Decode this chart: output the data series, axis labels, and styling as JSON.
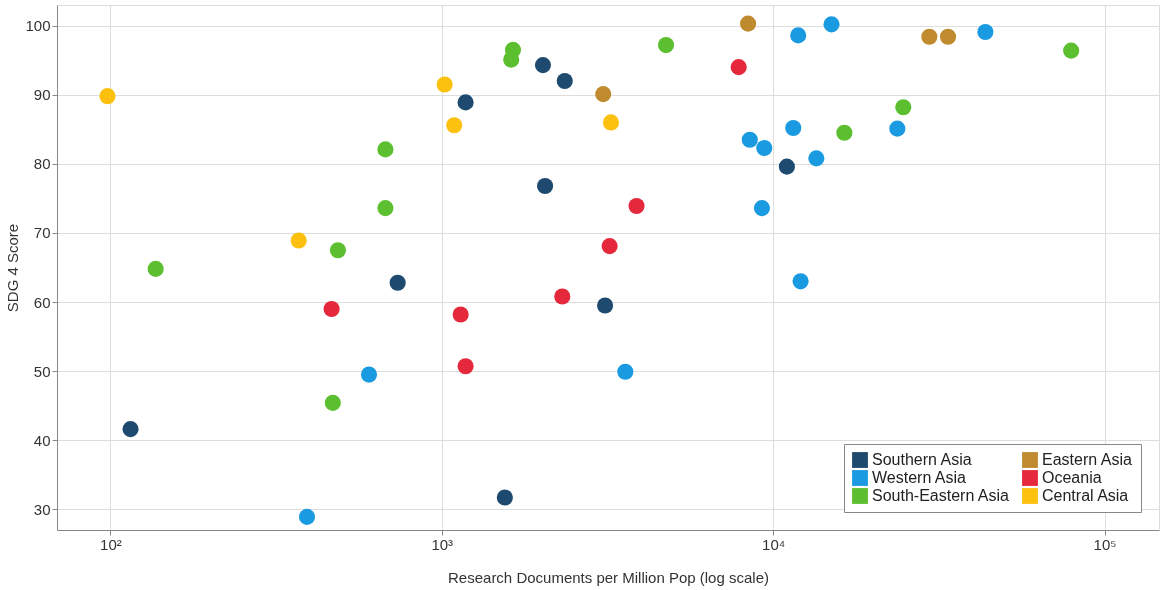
{
  "chart_data": {
    "type": "scatter",
    "xlabel": "Research Documents per Million Pop (log scale)",
    "ylabel": "SDG 4 Score",
    "log": "x",
    "grid": true,
    "legend": "bottom right",
    "xlim": [
      69,
      146000
    ],
    "ylim": [
      27,
      103
    ],
    "xticks": [
      {
        "value": 100,
        "label": "10²"
      },
      {
        "value": 1000,
        "label": "10³"
      },
      {
        "value": 10000,
        "label": "10⁴"
      },
      {
        "value": 100000,
        "label": "10⁵"
      }
    ],
    "yticks": [
      30,
      40,
      50,
      60,
      70,
      80,
      90,
      100
    ],
    "series": [
      {
        "name": "Southern Asia",
        "color": "#1d4a6e",
        "x": [
          115,
          736,
          1180,
          2020,
          2350,
          2050,
          3110,
          1550,
          11000
        ],
        "values": [
          41.6,
          62.8,
          88.9,
          94.3,
          92.0,
          76.8,
          59.5,
          31.7,
          79.6
        ]
      },
      {
        "name": "Western Asia",
        "color": "#1a9ae0",
        "x": [
          11900,
          15000,
          43700,
          8500,
          11500,
          9400,
          13500,
          23700,
          9250,
          12100,
          3580,
          603,
          392
        ],
        "values": [
          98.6,
          100.2,
          99.1,
          83.5,
          85.2,
          82.3,
          80.8,
          85.1,
          73.6,
          63.0,
          49.9,
          49.5,
          28.9
        ]
      },
      {
        "name": "South-Eastern Asia",
        "color": "#5bbf2f",
        "x": [
          137,
          676,
          676,
          486,
          469,
          1640,
          1620,
          4750,
          16400,
          24700,
          79300
        ],
        "values": [
          64.8,
          82.1,
          73.6,
          67.5,
          45.4,
          96.5,
          95.1,
          97.2,
          84.5,
          88.2,
          96.4
        ]
      },
      {
        "name": "Eastern Asia",
        "color": "#c08a2f",
        "x": [
          8400,
          3070,
          29600,
          33700
        ],
        "values": [
          100.3,
          90.1,
          98.4,
          98.4
        ]
      },
      {
        "name": "Oceania",
        "color": "#e5283c",
        "x": [
          7870,
          3870,
          3210,
          2310,
          1140,
          1180,
          465
        ],
        "values": [
          94.0,
          73.9,
          68.1,
          60.8,
          58.2,
          50.7,
          59.0
        ]
      },
      {
        "name": "Central Asia",
        "color": "#fcc10f",
        "x": [
          98,
          1020,
          1090,
          3240,
          370
        ],
        "values": [
          89.8,
          91.5,
          85.6,
          86.0,
          68.9
        ]
      }
    ]
  }
}
